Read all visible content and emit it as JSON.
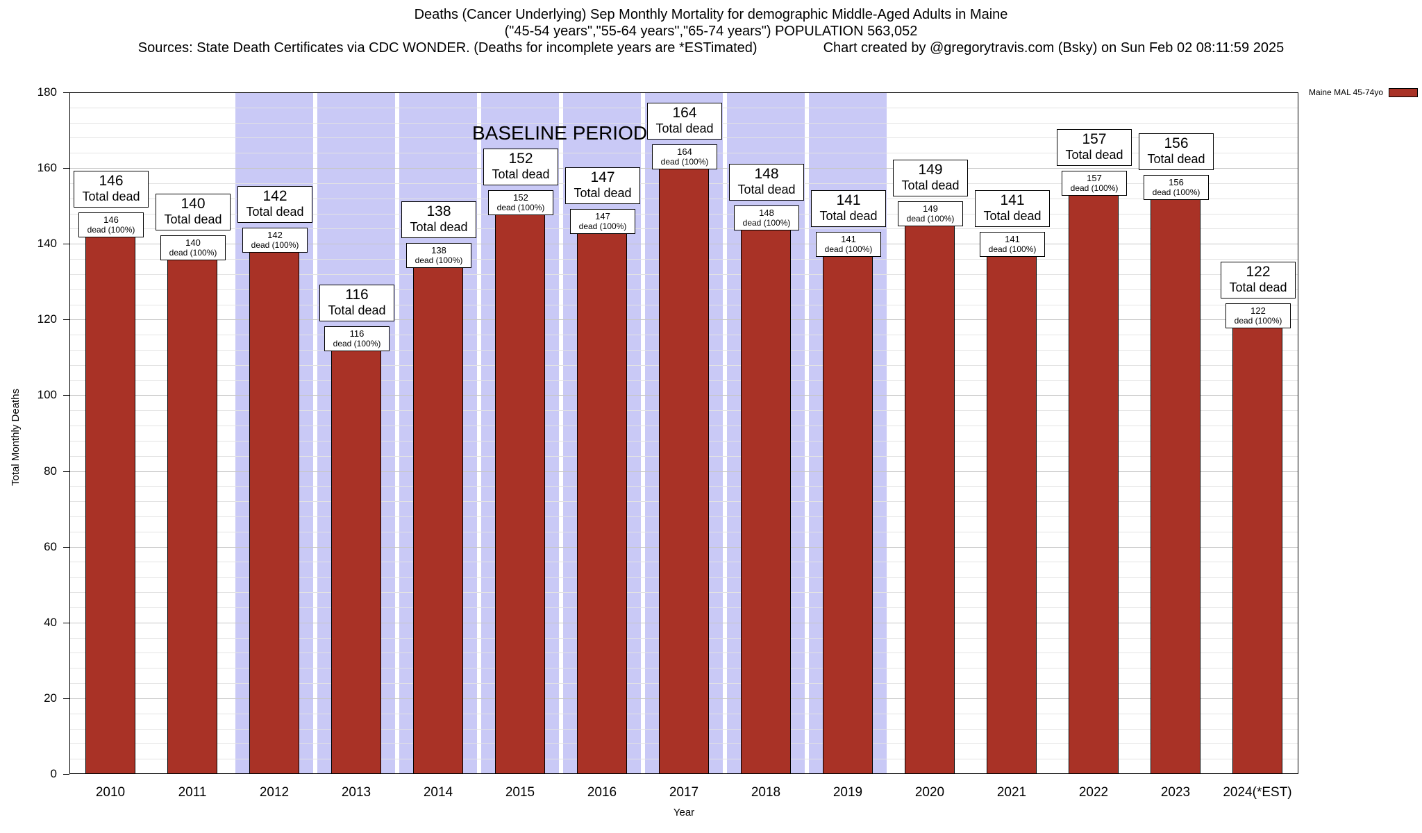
{
  "header": {
    "line1": "Deaths (Cancer Underlying) Sep Monthly Mortality for demographic Middle-Aged Adults in Maine",
    "line2": "(\"45-54 years\",\"55-64 years\",\"65-74 years\") POPULATION 563,052",
    "source": "Sources: State Death Certificates via CDC WONDER. (Deaths for incomplete years are *ESTimated)",
    "credit": "Chart created by @gregorytravis.com (Bsky) on Sun Feb 02 08:11:59 2025"
  },
  "chart_data": {
    "type": "bar",
    "title": "Deaths (Cancer Underlying) Sep Monthly Mortality for demographic Middle-Aged Adults in Maine",
    "subtitle": "(\"45-54 years\",\"55-64 years\",\"65-74 years\") POPULATION 563,052",
    "xlabel": "Year",
    "ylabel": "Total Monthly Deaths",
    "ylim": [
      0,
      180
    ],
    "y_major_step": 20,
    "y_minor_step": 4,
    "grid": true,
    "legend_position": "top-right",
    "series_name": "Maine MAL 45-74yo",
    "bar_color": "#A93226",
    "categories": [
      "2010",
      "2011",
      "2012",
      "2013",
      "2014",
      "2015",
      "2016",
      "2017",
      "2018",
      "2019",
      "2020",
      "2021",
      "2022",
      "2023",
      "2024(*EST)"
    ],
    "values": [
      146,
      140,
      142,
      116,
      138,
      152,
      147,
      164,
      148,
      141,
      149,
      141,
      157,
      156,
      122
    ],
    "total_caption": "Total dead",
    "bar_caption": "dead (100%)",
    "baseline": {
      "label": "BASELINE PERIOD",
      "start_category": "2012",
      "end_category": "2019",
      "color": "#C9C9F6"
    }
  }
}
